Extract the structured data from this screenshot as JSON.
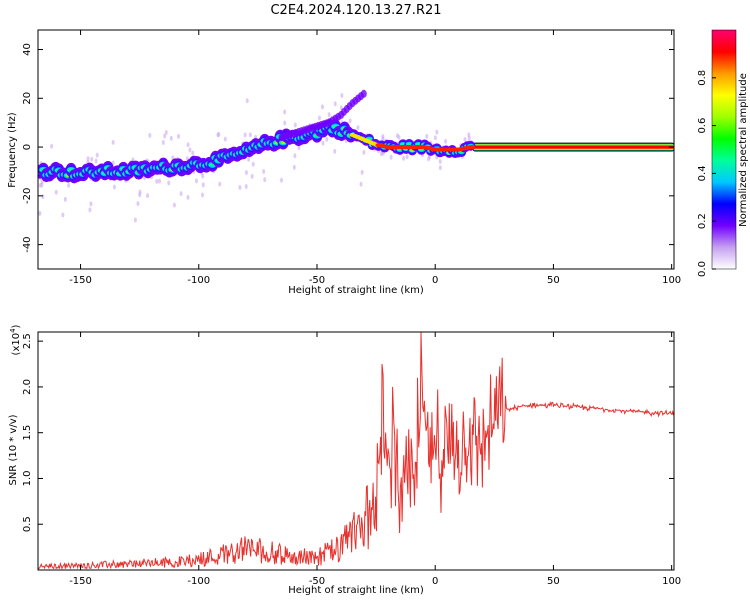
{
  "title": "C2E4.2024.120.13.27.R21",
  "chart_data": [
    {
      "id": "spectrogram",
      "type": "heatmap",
      "xlabel": "Height of straight line (km)",
      "ylabel": "Frequency (Hz)",
      "xlim": [
        -168,
        101
      ],
      "ylim": [
        -50,
        48
      ],
      "xticks": [
        -150,
        -100,
        -50,
        0,
        50,
        100
      ],
      "yticks": [
        -40,
        -20,
        0,
        20,
        40
      ],
      "grid": false,
      "ridge": {
        "x": [
          -168,
          -160,
          -150,
          -140,
          -130,
          -120,
          -110,
          -100,
          -90,
          -80,
          -70,
          -60,
          -50,
          -45,
          -40,
          -35,
          -30,
          -25,
          -20,
          -15,
          -10,
          -5,
          0,
          5,
          10,
          15,
          20,
          40,
          60,
          80,
          100
        ],
        "y": [
          -10,
          -10,
          -11,
          -10,
          -10,
          -9,
          -8,
          -7,
          -5,
          -2,
          2,
          4,
          6,
          8,
          7,
          5,
          3,
          1,
          0,
          0,
          0,
          0,
          -1,
          -1,
          -1,
          0,
          0,
          0,
          0,
          0,
          0
        ]
      },
      "branch": {
        "x": [
          -65,
          -55,
          -45,
          -40,
          -35,
          -30
        ],
        "y": [
          4,
          7,
          10,
          13,
          18,
          22
        ]
      },
      "colorbar": {
        "label": "Normalized spectral amplitude",
        "ticks": [
          0.0,
          0.2,
          0.4,
          0.6,
          0.8
        ],
        "range": [
          0,
          1
        ],
        "colors": [
          "#ffffff",
          "#c6a0f0",
          "#7000ff",
          "#0000ff",
          "#00c8ff",
          "#00ff9a",
          "#00ff00",
          "#a0ff00",
          "#ffff00",
          "#ff9a00",
          "#ff0000",
          "#ff0070"
        ]
      }
    },
    {
      "id": "snr",
      "type": "line",
      "xlabel": "Height of straight line (km)",
      "ylabel": "SNR (10 * v/v)",
      "scale_label": "(x10",
      "scale_exp": "4",
      "xlim": [
        -168,
        101
      ],
      "ylim": [
        0,
        2.6
      ],
      "xticks": [
        -150,
        -100,
        -50,
        0,
        50,
        100
      ],
      "yticks": [
        0.5,
        1.0,
        1.5,
        2.0,
        2.5
      ],
      "color": "#e8302c",
      "series": [
        {
          "x": [
            -168,
            -150,
            -130,
            -110,
            -100,
            -90,
            -80,
            -70,
            -60,
            -50,
            -40,
            -35,
            -30,
            -25,
            -22,
            -20,
            -18,
            -15,
            -10,
            -8,
            -6,
            -5,
            -3,
            0,
            5,
            10,
            15,
            20,
            25,
            30,
            35,
            40,
            50,
            60,
            70,
            80,
            90,
            100
          ],
          "y": [
            0.04,
            0.05,
            0.07,
            0.09,
            0.12,
            0.18,
            0.25,
            0.2,
            0.15,
            0.15,
            0.25,
            0.4,
            0.65,
            0.85,
            1.7,
            0.9,
            1.5,
            0.95,
            1.1,
            0.9,
            1.55,
            1.9,
            1.2,
            1.3,
            1.3,
            1.35,
            1.4,
            1.45,
            1.6,
            1.75,
            1.78,
            1.8,
            1.8,
            1.78,
            1.76,
            1.74,
            1.72,
            1.71
          ]
        }
      ]
    }
  ]
}
